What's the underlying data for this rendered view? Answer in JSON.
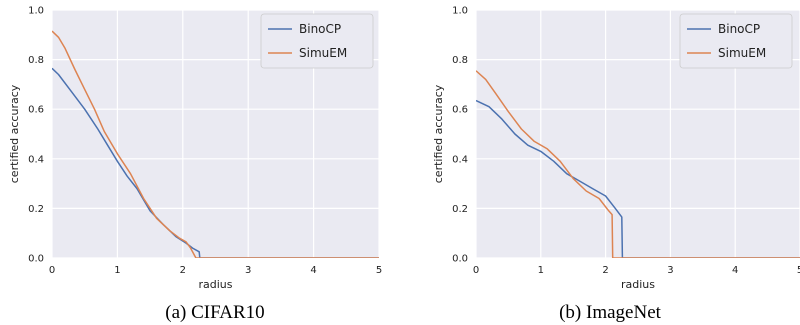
{
  "chart_data": [
    {
      "type": "line",
      "caption": "(a) CIFAR10",
      "xlabel": "radius",
      "ylabel": "certified accuracy",
      "xlim": [
        0,
        5
      ],
      "ylim": [
        0,
        1
      ],
      "xticks": [
        "0",
        "1",
        "2",
        "3",
        "4",
        "5"
      ],
      "yticks": [
        "0.0",
        "0.2",
        "0.4",
        "0.6",
        "0.8",
        "1.0"
      ],
      "grid": true,
      "legend_position": "top-right",
      "series": [
        {
          "name": "BinoCP",
          "color": "#4c72b0",
          "points": [
            [
              0,
              0.765
            ],
            [
              0.1,
              0.74
            ],
            [
              0.3,
              0.67
            ],
            [
              0.5,
              0.6
            ],
            [
              0.7,
              0.52
            ],
            [
              0.85,
              0.455
            ],
            [
              1.0,
              0.39
            ],
            [
              1.15,
              0.33
            ],
            [
              1.3,
              0.28
            ],
            [
              1.5,
              0.19
            ],
            [
              1.7,
              0.135
            ],
            [
              1.9,
              0.085
            ],
            [
              2.05,
              0.06
            ],
            [
              2.15,
              0.04
            ],
            [
              2.25,
              0.025
            ],
            [
              2.26,
              0.0
            ],
            [
              5.0,
              0.0
            ]
          ]
        },
        {
          "name": "SimuEM",
          "color": "#dd8452",
          "points": [
            [
              0,
              0.915
            ],
            [
              0.1,
              0.89
            ],
            [
              0.2,
              0.845
            ],
            [
              0.35,
              0.76
            ],
            [
              0.5,
              0.68
            ],
            [
              0.65,
              0.6
            ],
            [
              0.8,
              0.51
            ],
            [
              1.0,
              0.42
            ],
            [
              1.2,
              0.34
            ],
            [
              1.4,
              0.24
            ],
            [
              1.6,
              0.16
            ],
            [
              1.8,
              0.11
            ],
            [
              1.95,
              0.08
            ],
            [
              2.05,
              0.065
            ],
            [
              2.12,
              0.04
            ],
            [
              2.2,
              0.0
            ],
            [
              5.0,
              0.0
            ]
          ]
        }
      ]
    },
    {
      "type": "line",
      "caption": "(b) ImageNet",
      "xlabel": "radius",
      "ylabel": "certified accuracy",
      "xlim": [
        0,
        5
      ],
      "ylim": [
        0,
        1
      ],
      "xticks": [
        "0",
        "1",
        "2",
        "3",
        "4",
        "5"
      ],
      "yticks": [
        "0.0",
        "0.2",
        "0.4",
        "0.6",
        "0.8",
        "1.0"
      ],
      "grid": true,
      "legend_position": "top-right",
      "series": [
        {
          "name": "BinoCP",
          "color": "#4c72b0",
          "points": [
            [
              0,
              0.635
            ],
            [
              0.2,
              0.61
            ],
            [
              0.4,
              0.56
            ],
            [
              0.6,
              0.5
            ],
            [
              0.8,
              0.455
            ],
            [
              1.0,
              0.43
            ],
            [
              1.2,
              0.39
            ],
            [
              1.4,
              0.34
            ],
            [
              1.6,
              0.31
            ],
            [
              1.8,
              0.28
            ],
            [
              2.0,
              0.25
            ],
            [
              2.15,
              0.2
            ],
            [
              2.25,
              0.165
            ],
            [
              2.26,
              0.0
            ],
            [
              5.0,
              0.0
            ]
          ]
        },
        {
          "name": "SimuEM",
          "color": "#dd8452",
          "points": [
            [
              0,
              0.755
            ],
            [
              0.15,
              0.72
            ],
            [
              0.3,
              0.665
            ],
            [
              0.5,
              0.59
            ],
            [
              0.7,
              0.52
            ],
            [
              0.9,
              0.47
            ],
            [
              1.1,
              0.44
            ],
            [
              1.3,
              0.39
            ],
            [
              1.5,
              0.32
            ],
            [
              1.7,
              0.27
            ],
            [
              1.9,
              0.24
            ],
            [
              2.05,
              0.19
            ],
            [
              2.1,
              0.175
            ],
            [
              2.11,
              0.0
            ],
            [
              5.0,
              0.0
            ]
          ]
        }
      ]
    }
  ]
}
